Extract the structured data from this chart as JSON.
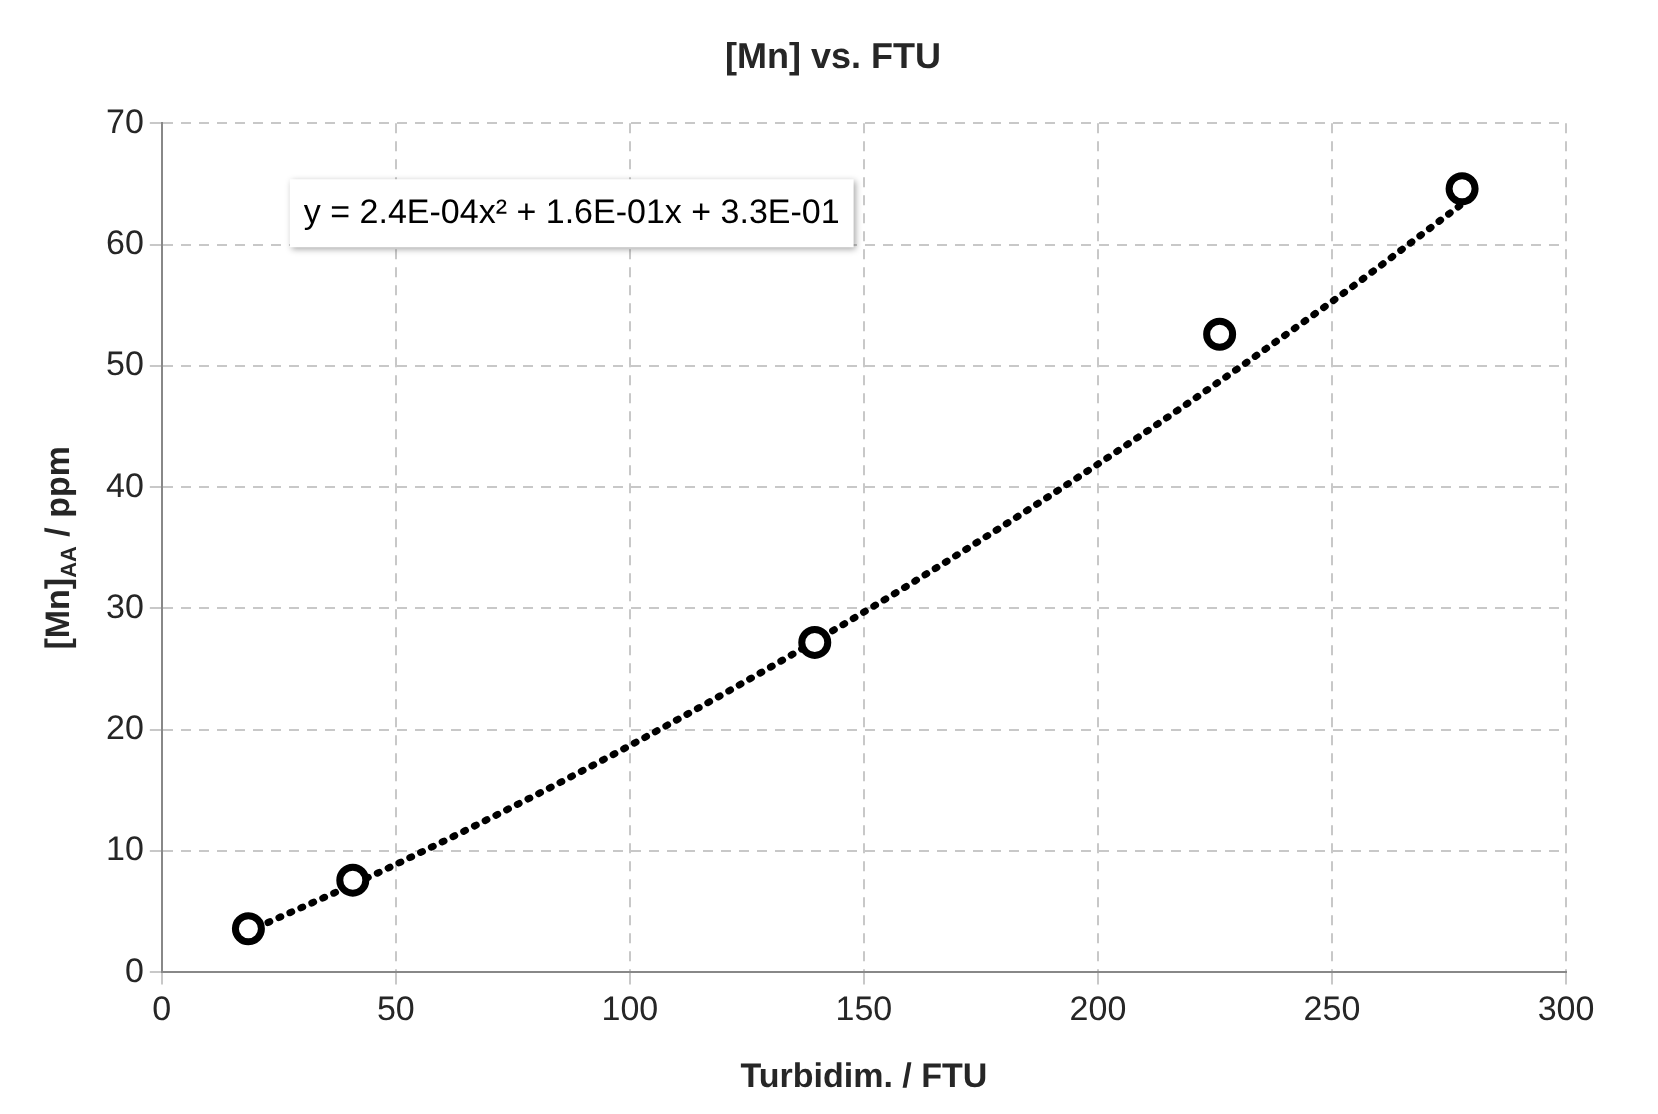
{
  "chart_data": {
    "type": "scatter",
    "title": "[Mn] vs. FTU",
    "xlabel": "Turbidim. / FTU",
    "ylabel": "[Mn]$_{AA}$ / ppm",
    "xlim": [
      0,
      300
    ],
    "xticks": [
      0,
      50,
      100,
      150,
      200,
      250,
      300
    ],
    "ylim": [
      0,
      70
    ],
    "yticks": [
      0,
      10,
      20,
      30,
      40,
      50,
      60,
      70
    ],
    "grid": true,
    "legend": false,
    "marker": "circle",
    "annotations": [
      "y = 2.4E-04x² + 1.6E-01x + 3.3E-01"
    ],
    "series": [
      {
        "color": "#000000",
        "x": [
          18.5,
          40.8,
          139.5,
          226,
          277.8
        ],
        "values": [
          3.6,
          7.6,
          27.2,
          52.6,
          64.6
        ]
      },
      {
        "type": "line",
        "color": "#000000",
        "marker": "none",
        "line_style": "dotted",
        "x": [
          18,
          50,
          100,
          150,
          200,
          250,
          278
        ],
        "values": [
          3.3,
          8.9,
          18.7,
          29.7,
          41.9,
          55.3,
          63.4
        ]
      }
    ]
  }
}
